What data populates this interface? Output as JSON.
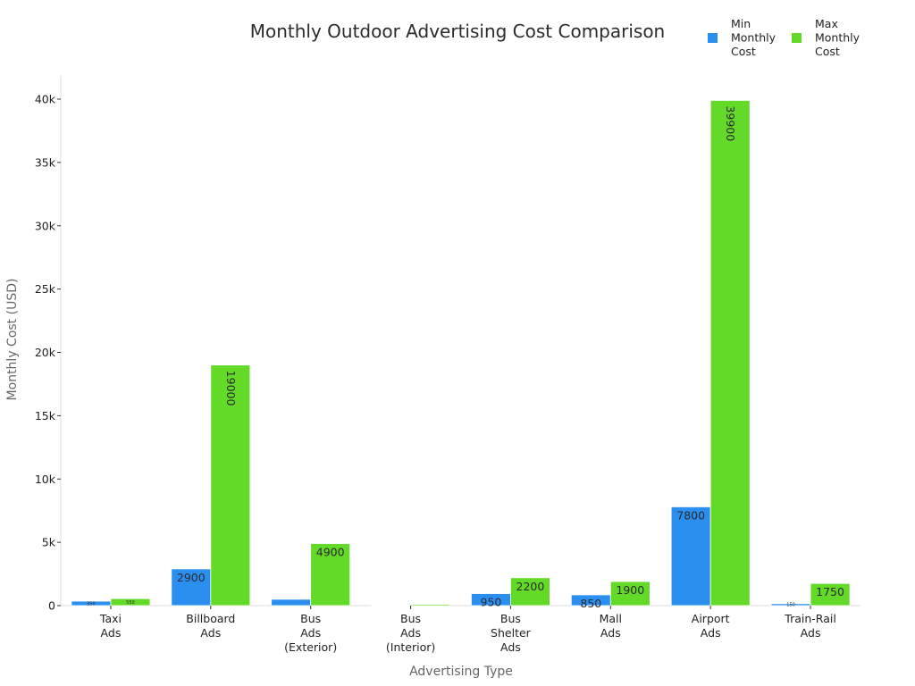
{
  "chart_data": {
    "type": "bar",
    "title": "Monthly Outdoor Advertising Cost Comparison",
    "xlabel": "Advertising Type",
    "ylabel": "Monthly Cost (USD)",
    "ylim": [
      0,
      41500
    ],
    "yticks": [
      0,
      5000,
      10000,
      15000,
      20000,
      25000,
      30000,
      35000,
      40000
    ],
    "ytick_labels": [
      "0",
      "5k",
      "10k",
      "15k",
      "20k",
      "25k",
      "30k",
      "35k",
      "40k"
    ],
    "categories": [
      [
        "Taxi",
        "Ads"
      ],
      [
        "Billboard",
        "Ads"
      ],
      [
        "Bus",
        "Ads",
        "(Exterior)"
      ],
      [
        "Bus",
        "Ads",
        "(Interior)"
      ],
      [
        "Bus",
        "Shelter",
        "Ads"
      ],
      [
        "Mall",
        "Ads"
      ],
      [
        "Airport",
        "Ads"
      ],
      [
        "Train-Rail",
        "Ads"
      ]
    ],
    "series": [
      {
        "name": "Min Monthly Cost",
        "legend_lines": [
          "Min",
          "Monthly",
          "Cost"
        ],
        "color": "#2b8ff0",
        "values": [
          350,
          2900,
          500,
          50,
          950,
          850,
          7800,
          150
        ],
        "labels": [
          "350",
          "2900",
          "",
          "",
          "950",
          "850",
          "7800",
          "150"
        ]
      },
      {
        "name": "Max Monthly Cost",
        "legend_lines": [
          "Max",
          "Monthly",
          "Cost"
        ],
        "color": "#63d928",
        "values": [
          550,
          19000,
          4900,
          100,
          2200,
          1900,
          39900,
          1750
        ],
        "labels": [
          "550",
          "19000",
          "4900",
          "",
          "2200",
          "1900",
          "39900",
          "1750"
        ]
      }
    ],
    "grid": false,
    "legend_position": "top-right"
  }
}
